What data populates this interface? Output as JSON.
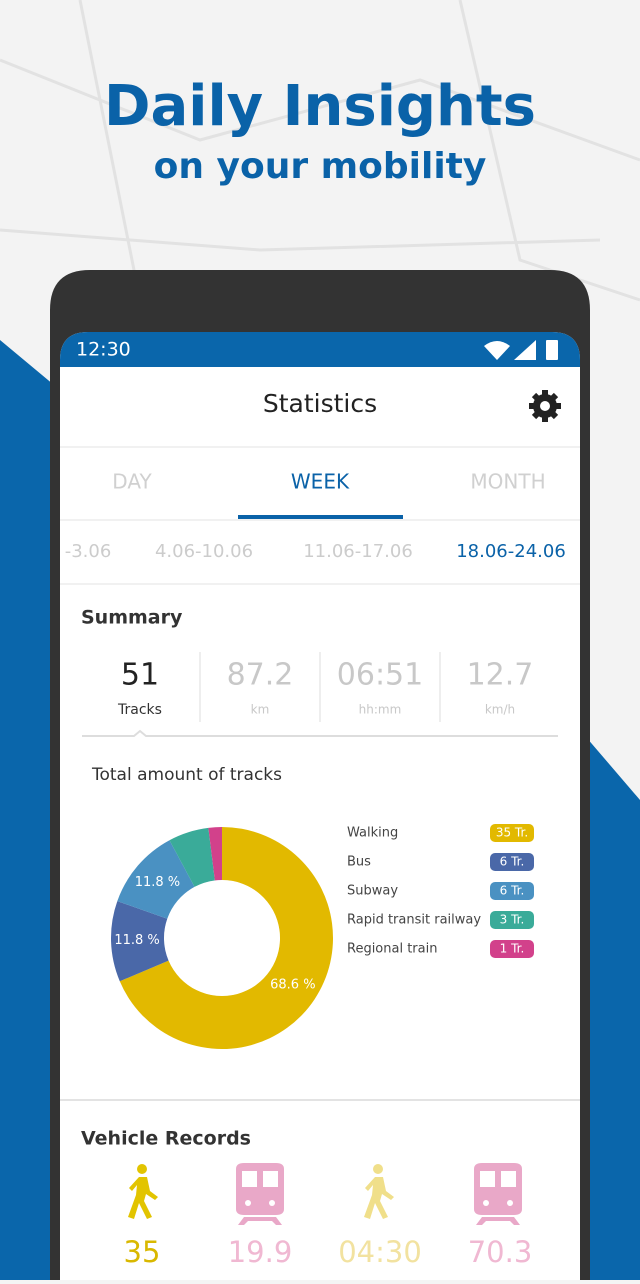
{
  "promo": {
    "title": "Daily Insights",
    "subtitle": "on your mobility"
  },
  "status_bar": {
    "time": "12:30"
  },
  "header": {
    "title": "Statistics"
  },
  "tabs": [
    "DAY",
    "WEEK",
    "MONTH"
  ],
  "date_ranges": [
    "-3.06",
    "4.06-10.06",
    "11.06-17.06",
    "18.06-24.06"
  ],
  "summary": {
    "title": "Summary",
    "stats": [
      {
        "value": "51",
        "unit": "Tracks"
      },
      {
        "value": "87.2",
        "unit": "km"
      },
      {
        "value": "06:51",
        "unit": "hh:mm"
      },
      {
        "value": "12.7",
        "unit": "km/h"
      }
    ]
  },
  "chart": {
    "type": "pie",
    "title": "Total amount of tracks",
    "categories": [
      "Walking",
      "Bus",
      "Subway",
      "Rapid transit railway",
      "Regional train"
    ],
    "values": [
      35,
      6,
      6,
      3,
      1
    ],
    "value_labels": [
      "35 Tr.",
      "6 Tr.",
      "6 Tr.",
      "3 Tr.",
      "1 Tr."
    ],
    "percent_labels": [
      "68.6 %",
      "11.8 %",
      "11.8 %",
      null,
      null
    ],
    "colors": [
      "#e2b900",
      "#4a68a8",
      "#4a91c2",
      "#3aab99",
      "#d2418b"
    ]
  },
  "vehicle_records": {
    "title": "Vehicle Records",
    "values": [
      "35",
      "19.9",
      "04:30",
      "70.3"
    ]
  }
}
